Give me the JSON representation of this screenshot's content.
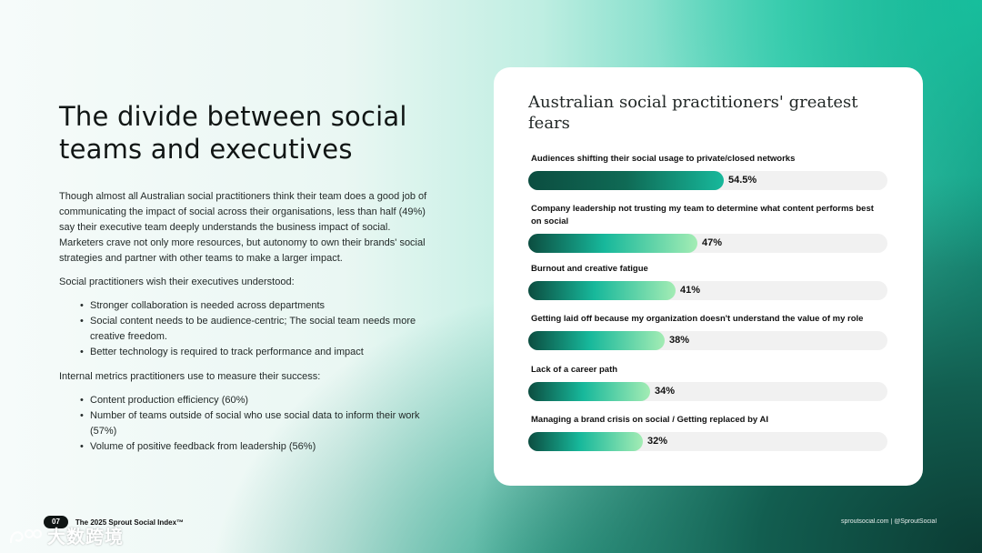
{
  "headline": "The divide between social teams and executives",
  "intro": "Though almost all Australian social practitioners think their team does a good job of communicating the impact of social across their organisations, less than half (49%) say their executive team deeply understands the business impact of social. Marketers crave not only more resources, but autonomy to own their brands' social strategies and partner with other teams to make a larger impact.",
  "wish_heading": "Social practitioners wish their executives understood:",
  "wish_items": [
    "Stronger collaboration is needed across departments",
    "Social content needs to be audience-centric; The social team needs more creative freedom.",
    "Better technology is required to track performance and impact"
  ],
  "metrics_heading": "Internal metrics practitioners use to measure their success:",
  "metrics_items": [
    "Content production efficiency (60%)",
    "Number of teams outside of social who use social data to inform their work (57%)",
    "Volume of positive feedback from leadership (56%)"
  ],
  "card_title": "Australian social practitioners' greatest fears",
  "chart_data": {
    "type": "bar",
    "orientation": "horizontal",
    "title": "Australian social practitioners' greatest fears",
    "xlim": [
      0,
      100
    ],
    "categories": [
      "Audiences shifting their social usage to private/closed networks",
      "Company leadership not trusting my team to determine what content performs best on social",
      "Burnout and creative fatigue",
      "Getting laid off because my organization doesn't understand the value of my role",
      "Lack of a career path",
      "Managing a brand crisis on social / Getting replaced by AI"
    ],
    "values": [
      54.5,
      47,
      41,
      38,
      34,
      32
    ],
    "value_labels": [
      "54.5%",
      "47%",
      "41%",
      "38%",
      "34%",
      "32%"
    ],
    "bar_colors": {
      "dark": "#0c4d40",
      "mid": "#17b89b",
      "light": "#a3ecb4",
      "track": "#f1f1f1"
    }
  },
  "footer": {
    "page_number": "07",
    "report_title": "The 2025 Sprout Social Index™",
    "site_handle": "sproutsocial.com  |  @SproutSocial"
  },
  "watermark_text": "大数跨境"
}
